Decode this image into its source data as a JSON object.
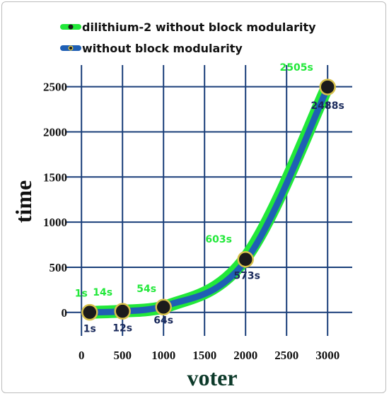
{
  "chart_data": {
    "type": "line",
    "xlabel": "voter",
    "ylabel": "time",
    "x": [
      100,
      500,
      1000,
      2000,
      3000
    ],
    "xticks": [
      0,
      500,
      1000,
      1500,
      2000,
      2500,
      3000
    ],
    "yticks": [
      0,
      500,
      1000,
      1500,
      2000,
      2500
    ],
    "xlim": [
      -200,
      3300
    ],
    "ylim": [
      -260,
      2740
    ],
    "grid": true,
    "legend_position": "top",
    "series": [
      {
        "name": "dilithium-2 without block modularity",
        "color": "#22e83a",
        "label_color": "#22e83a",
        "values": [
          1,
          14,
          54,
          603,
          2505
        ],
        "labels": [
          "1s",
          "14s",
          "54s",
          "603s",
          "2505s"
        ]
      },
      {
        "name": "without block modularity",
        "color": "#1f5fb4",
        "label_color": "#1a2a5c",
        "values": [
          1,
          12,
          64,
          573,
          2488
        ],
        "labels": [
          "1s",
          "12s",
          "64s",
          "573s",
          "2488s"
        ]
      }
    ],
    "colors": {
      "grid": "#1a3f7a",
      "marker_fill": "#1b1b1b",
      "marker_edge": "#d8c24a"
    }
  }
}
